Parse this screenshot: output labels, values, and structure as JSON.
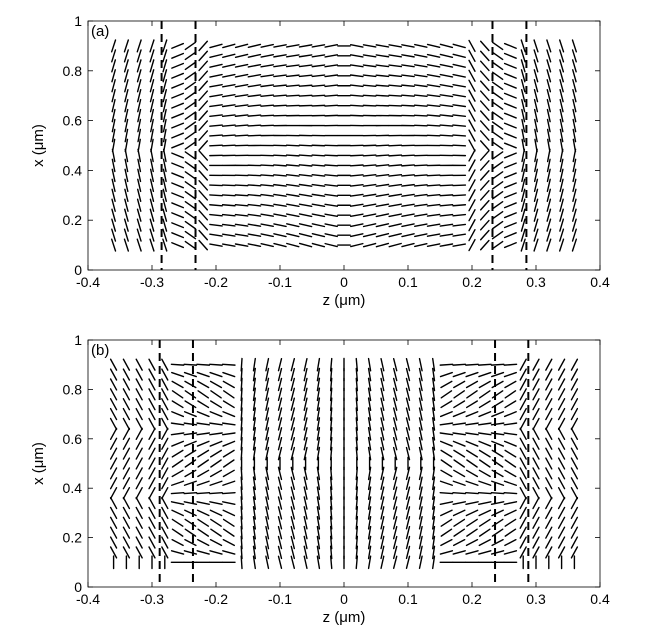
{
  "chart_data": [
    {
      "type": "quiver",
      "panel_label": "(a)",
      "xlabel": "z (μm)",
      "ylabel": "x (μm)",
      "xlim": [
        -0.4,
        0.4
      ],
      "ylim": [
        0,
        1
      ],
      "xticks": [
        -0.4,
        -0.3,
        -0.2,
        -0.1,
        0,
        0.1,
        0.2,
        0.3,
        0.4
      ],
      "xtick_labels": [
        "-0.4",
        "-0.3",
        "-0.2",
        "-0.1",
        "0",
        "0.1",
        "0.2",
        "0.3",
        "0.4"
      ],
      "yticks": [
        0,
        0.2,
        0.4,
        0.6,
        0.8,
        1
      ],
      "ytick_labels": [
        "0",
        "0.2",
        "0.4",
        "0.6",
        "0.8",
        "1"
      ],
      "grid": false,
      "boundaries_z": [
        -0.285,
        -0.232,
        0.232,
        0.285
      ],
      "field": {
        "z_range": [
          -0.36,
          0.36
        ],
        "x_range": [
          0.1,
          0.9
        ],
        "nz": 37,
        "nx": 21,
        "pattern": "hourglass-a"
      }
    },
    {
      "type": "quiver",
      "panel_label": "(b)",
      "xlabel": "z (μm)",
      "ylabel": "x (μm)",
      "xlim": [
        -0.4,
        0.4
      ],
      "ylim": [
        0,
        1
      ],
      "xticks": [
        -0.4,
        -0.3,
        -0.2,
        -0.1,
        0,
        0.1,
        0.2,
        0.3,
        0.4
      ],
      "xtick_labels": [
        "-0.4",
        "-0.3",
        "-0.2",
        "-0.1",
        "0",
        "0.1",
        "0.2",
        "0.3",
        "0.4"
      ],
      "yticks": [
        0,
        0.2,
        0.4,
        0.6,
        0.8,
        1
      ],
      "ytick_labels": [
        "0",
        "0.2",
        "0.4",
        "0.6",
        "0.8",
        "1"
      ],
      "grid": false,
      "boundaries_z": [
        -0.288,
        -0.236,
        0.236,
        0.288
      ],
      "field": {
        "z_range": [
          -0.36,
          0.36
        ],
        "x_range": [
          0.1,
          0.9
        ],
        "nz": 37,
        "nx": 21,
        "pattern": "cells-b"
      }
    }
  ]
}
